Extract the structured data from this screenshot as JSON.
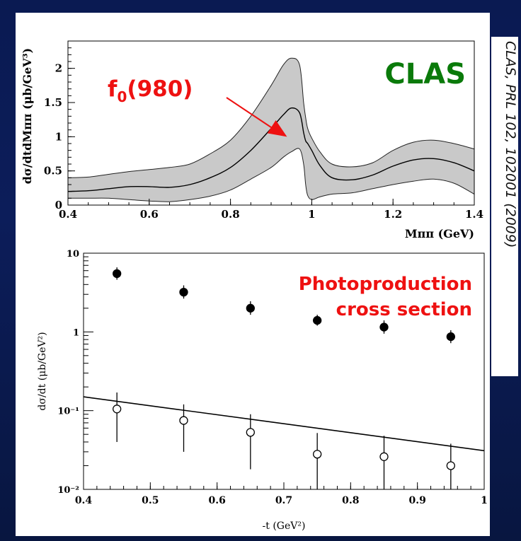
{
  "citation": "CLAS, PRL 102, 102001 (2009)",
  "colors": {
    "annotation_red": "#ee1111",
    "clas_green": "#0a7a0a",
    "band_fill": "#c9c9c9",
    "line": "#000000"
  },
  "chart_data": [
    {
      "type": "line",
      "label": "CLAS",
      "annotation": {
        "text": "f",
        "subscript": "0",
        "suffix": "(980)",
        "points_to_x": 0.97
      },
      "ylabel": "dσ/dtdMππ (μb/GeV³)",
      "xlabel": "Mππ (GeV)",
      "xlim": [
        0.4,
        1.4
      ],
      "ylim": [
        0,
        2.4
      ],
      "x_ticks": [
        "0.4",
        "0.6",
        "0.8",
        "1",
        "1.2",
        "1.4"
      ],
      "y_ticks": [
        "0",
        "0.5",
        "1",
        "1.5",
        "2"
      ],
      "series": [
        {
          "x": [
            0.4,
            0.45,
            0.5,
            0.55,
            0.6,
            0.65,
            0.7,
            0.75,
            0.8,
            0.85,
            0.9,
            0.93,
            0.95,
            0.97,
            0.98,
            0.985,
            0.99,
            1.0,
            1.02,
            1.05,
            1.1,
            1.15,
            1.2,
            1.25,
            1.3,
            1.35,
            1.4
          ],
          "y": [
            0.2,
            0.21,
            0.24,
            0.27,
            0.27,
            0.26,
            0.3,
            0.4,
            0.55,
            0.8,
            1.12,
            1.32,
            1.42,
            1.35,
            1.06,
            0.94,
            0.9,
            0.8,
            0.58,
            0.4,
            0.37,
            0.44,
            0.57,
            0.66,
            0.68,
            0.62,
            0.5
          ],
          "band_upper": [
            0.4,
            0.41,
            0.45,
            0.49,
            0.52,
            0.55,
            0.6,
            0.75,
            0.95,
            1.3,
            1.75,
            2.05,
            2.15,
            2.05,
            1.5,
            1.28,
            1.12,
            0.98,
            0.78,
            0.6,
            0.56,
            0.62,
            0.8,
            0.92,
            0.95,
            0.9,
            0.82
          ],
          "band_lower": [
            0.1,
            0.1,
            0.1,
            0.08,
            0.06,
            0.05,
            0.08,
            0.13,
            0.22,
            0.38,
            0.55,
            0.7,
            0.78,
            0.82,
            0.6,
            0.3,
            0.14,
            0.08,
            0.12,
            0.16,
            0.18,
            0.24,
            0.3,
            0.35,
            0.38,
            0.32,
            0.16
          ]
        }
      ]
    },
    {
      "type": "scatter",
      "label": "Photoproduction cross section",
      "ylabel": "dσ/dt (μb/GeV²)",
      "xlabel": "-t (GeV²)",
      "xlim": [
        0.4,
        1.0
      ],
      "ylim": [
        0.01,
        10
      ],
      "yscale": "log",
      "x_ticks": [
        "0.4",
        "0.5",
        "0.6",
        "0.7",
        "0.8",
        "0.9",
        "1"
      ],
      "y_ticks": [
        "10⁻²",
        "10⁻¹",
        "1",
        "10"
      ],
      "series": [
        {
          "marker": "filled",
          "x": [
            0.45,
            0.55,
            0.65,
            0.75,
            0.85,
            0.95
          ],
          "y": [
            5.5,
            3.2,
            2.0,
            1.4,
            1.15,
            0.87
          ],
          "err_low": [
            4.6,
            2.65,
            1.65,
            1.2,
            0.95,
            0.72
          ],
          "err_high": [
            6.6,
            3.9,
            2.45,
            1.65,
            1.4,
            1.05
          ]
        },
        {
          "marker": "open",
          "x": [
            0.45,
            0.55,
            0.65,
            0.75,
            0.85,
            0.95
          ],
          "y": [
            0.105,
            0.075,
            0.053,
            0.028,
            0.026,
            0.02
          ],
          "err_low": [
            0.04,
            0.03,
            0.018,
            0.01,
            0.01,
            0.01
          ],
          "err_high": [
            0.17,
            0.12,
            0.09,
            0.052,
            0.048,
            0.038
          ]
        },
        {
          "marker": "line",
          "x": [
            0.4,
            1.0
          ],
          "y": [
            0.15,
            0.031
          ]
        }
      ]
    }
  ]
}
